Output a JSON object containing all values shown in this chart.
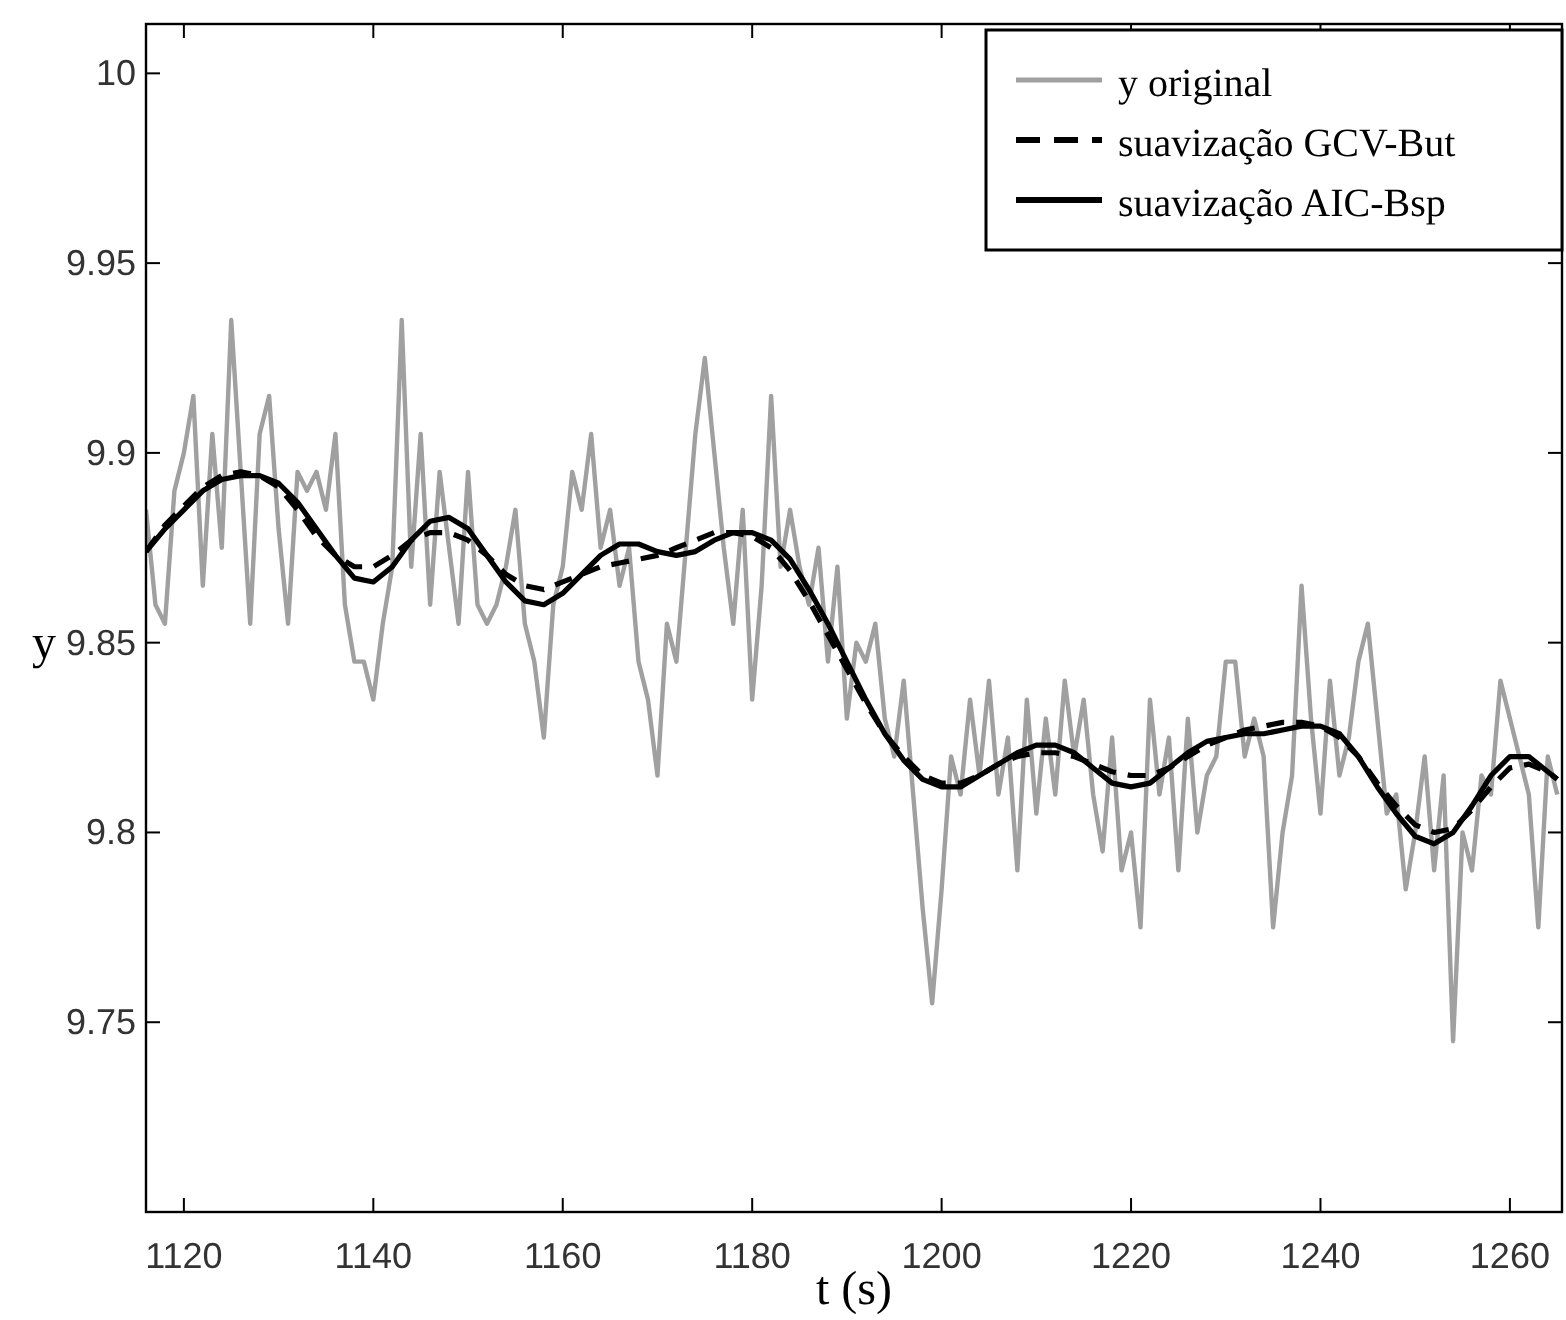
{
  "chart_data": {
    "type": "line",
    "xlabel": "t (s)",
    "ylabel": "y",
    "xlim": [
      1116,
      1265.5
    ],
    "ylim": [
      9.7,
      10.013
    ],
    "xticks": [
      1120,
      1140,
      1160,
      1180,
      1200,
      1220,
      1240,
      1260
    ],
    "yticks": [
      9.75,
      9.8,
      9.85,
      9.9,
      9.95,
      10
    ],
    "grid": false,
    "legend": "top right",
    "marker": "none",
    "series": [
      {
        "name": "y original",
        "color": "#a0a0a0",
        "line_style": "solid",
        "x": [
          1116,
          1117,
          1118,
          1119,
          1120,
          1121,
          1122,
          1123,
          1124,
          1125,
          1126,
          1127,
          1128,
          1129,
          1130,
          1131,
          1132,
          1133,
          1134,
          1135,
          1136,
          1137,
          1138,
          1139,
          1140,
          1141,
          1142,
          1143,
          1144,
          1145,
          1146,
          1147,
          1148,
          1149,
          1150,
          1151,
          1152,
          1153,
          1154,
          1155,
          1156,
          1157,
          1158,
          1159,
          1160,
          1161,
          1162,
          1163,
          1164,
          1165,
          1166,
          1167,
          1168,
          1169,
          1170,
          1171,
          1172,
          1173,
          1174,
          1175,
          1176,
          1177,
          1178,
          1179,
          1180,
          1181,
          1182,
          1183,
          1184,
          1185,
          1186,
          1187,
          1188,
          1189,
          1190,
          1191,
          1192,
          1193,
          1194,
          1195,
          1196,
          1197,
          1198,
          1199,
          1200,
          1201,
          1202,
          1203,
          1204,
          1205,
          1206,
          1207,
          1208,
          1209,
          1210,
          1211,
          1212,
          1213,
          1214,
          1215,
          1216,
          1217,
          1218,
          1219,
          1220,
          1221,
          1222,
          1223,
          1224,
          1225,
          1226,
          1227,
          1228,
          1229,
          1230,
          1231,
          1232,
          1233,
          1234,
          1235,
          1236,
          1237,
          1238,
          1239,
          1240,
          1241,
          1242,
          1243,
          1244,
          1245,
          1246,
          1247,
          1248,
          1249,
          1250,
          1251,
          1252,
          1253,
          1254,
          1255,
          1256,
          1257,
          1258,
          1259,
          1260,
          1261,
          1262,
          1263,
          1264,
          1265
        ],
        "values": [
          9.885,
          9.86,
          9.855,
          9.89,
          9.9,
          9.915,
          9.865,
          9.905,
          9.875,
          9.935,
          9.895,
          9.855,
          9.905,
          9.915,
          9.88,
          9.855,
          9.895,
          9.89,
          9.895,
          9.885,
          9.905,
          9.86,
          9.845,
          9.845,
          9.835,
          9.855,
          9.87,
          9.935,
          9.87,
          9.905,
          9.86,
          9.895,
          9.875,
          9.855,
          9.895,
          9.86,
          9.855,
          9.86,
          9.87,
          9.885,
          9.855,
          9.845,
          9.825,
          9.86,
          9.87,
          9.895,
          9.885,
          9.905,
          9.875,
          9.885,
          9.865,
          9.875,
          9.845,
          9.835,
          9.815,
          9.855,
          9.845,
          9.875,
          9.905,
          9.925,
          9.9,
          9.875,
          9.855,
          9.885,
          9.835,
          9.865,
          9.915,
          9.87,
          9.885,
          9.87,
          9.86,
          9.875,
          9.845,
          9.87,
          9.83,
          9.85,
          9.845,
          9.855,
          9.83,
          9.82,
          9.84,
          9.81,
          9.78,
          9.755,
          9.785,
          9.82,
          9.81,
          9.835,
          9.815,
          9.84,
          9.81,
          9.825,
          9.79,
          9.835,
          9.805,
          9.83,
          9.81,
          9.84,
          9.82,
          9.835,
          9.81,
          9.795,
          9.825,
          9.79,
          9.8,
          9.775,
          9.835,
          9.81,
          9.825,
          9.79,
          9.83,
          9.8,
          9.815,
          9.82,
          9.845,
          9.845,
          9.82,
          9.83,
          9.82,
          9.775,
          9.8,
          9.815,
          9.865,
          9.83,
          9.805,
          9.84,
          9.815,
          9.825,
          9.845,
          9.855,
          9.83,
          9.805,
          9.81,
          9.785,
          9.8,
          9.82,
          9.79,
          9.815,
          9.745,
          9.8,
          9.79,
          9.815,
          9.81,
          9.84,
          9.83,
          9.82,
          9.81,
          9.775,
          9.82,
          9.81
        ]
      },
      {
        "name": "suavização GCV-But",
        "color": "#000000",
        "line_style": "dashed",
        "x": [
          1116,
          1118,
          1120,
          1122,
          1124,
          1126,
          1128,
          1130,
          1132,
          1134,
          1136,
          1138,
          1140,
          1142,
          1144,
          1146,
          1148,
          1150,
          1152,
          1154,
          1156,
          1158,
          1160,
          1162,
          1164,
          1166,
          1168,
          1170,
          1172,
          1174,
          1176,
          1178,
          1180,
          1182,
          1184,
          1186,
          1188,
          1190,
          1192,
          1194,
          1196,
          1198,
          1200,
          1202,
          1204,
          1206,
          1208,
          1210,
          1212,
          1214,
          1216,
          1218,
          1220,
          1222,
          1224,
          1226,
          1228,
          1230,
          1232,
          1234,
          1236,
          1238,
          1240,
          1242,
          1244,
          1246,
          1248,
          1250,
          1252,
          1254,
          1256,
          1258,
          1260,
          1262,
          1264,
          1265
        ],
        "values": [
          9.874,
          9.881,
          9.886,
          9.891,
          9.894,
          9.895,
          9.894,
          9.891,
          9.885,
          9.878,
          9.873,
          9.87,
          9.87,
          9.873,
          9.877,
          9.879,
          9.879,
          9.877,
          9.873,
          9.868,
          9.865,
          9.864,
          9.866,
          9.868,
          9.87,
          9.871,
          9.872,
          9.873,
          9.875,
          9.877,
          9.879,
          9.879,
          9.878,
          9.875,
          9.869,
          9.861,
          9.852,
          9.843,
          9.834,
          9.826,
          9.82,
          9.815,
          9.813,
          9.813,
          9.815,
          9.818,
          9.82,
          9.821,
          9.821,
          9.82,
          9.818,
          9.816,
          9.815,
          9.815,
          9.817,
          9.82,
          9.823,
          9.825,
          9.827,
          9.828,
          9.829,
          9.829,
          9.828,
          9.825,
          9.82,
          9.813,
          9.807,
          9.802,
          9.8,
          9.801,
          9.806,
          9.812,
          9.817,
          9.818,
          9.816,
          9.814
        ]
      },
      {
        "name": "suavização AIC-Bsp",
        "color": "#000000",
        "line_style": "solid",
        "x": [
          1116,
          1118,
          1120,
          1122,
          1124,
          1126,
          1128,
          1130,
          1132,
          1134,
          1136,
          1138,
          1140,
          1142,
          1144,
          1146,
          1148,
          1150,
          1152,
          1154,
          1156,
          1158,
          1160,
          1162,
          1164,
          1166,
          1168,
          1170,
          1172,
          1174,
          1176,
          1178,
          1180,
          1182,
          1184,
          1186,
          1188,
          1190,
          1192,
          1194,
          1196,
          1198,
          1200,
          1202,
          1204,
          1206,
          1208,
          1210,
          1212,
          1214,
          1216,
          1218,
          1220,
          1222,
          1224,
          1226,
          1228,
          1230,
          1232,
          1234,
          1236,
          1238,
          1240,
          1242,
          1244,
          1246,
          1248,
          1250,
          1252,
          1254,
          1256,
          1258,
          1260,
          1262,
          1264,
          1265
        ],
        "values": [
          9.874,
          9.88,
          9.885,
          9.89,
          9.893,
          9.894,
          9.894,
          9.892,
          9.887,
          9.88,
          9.873,
          9.867,
          9.866,
          9.87,
          9.877,
          9.882,
          9.883,
          9.88,
          9.873,
          9.866,
          9.861,
          9.86,
          9.863,
          9.868,
          9.873,
          9.876,
          9.876,
          9.874,
          9.873,
          9.874,
          9.877,
          9.879,
          9.879,
          9.877,
          9.872,
          9.864,
          9.855,
          9.845,
          9.835,
          9.826,
          9.819,
          9.814,
          9.812,
          9.812,
          9.815,
          9.818,
          9.821,
          9.823,
          9.823,
          9.821,
          9.817,
          9.813,
          9.812,
          9.813,
          9.817,
          9.821,
          9.824,
          9.825,
          9.826,
          9.826,
          9.827,
          9.828,
          9.828,
          9.826,
          9.82,
          9.812,
          9.805,
          9.799,
          9.797,
          9.8,
          9.807,
          9.815,
          9.82,
          9.82,
          9.816,
          9.814
        ]
      }
    ]
  }
}
